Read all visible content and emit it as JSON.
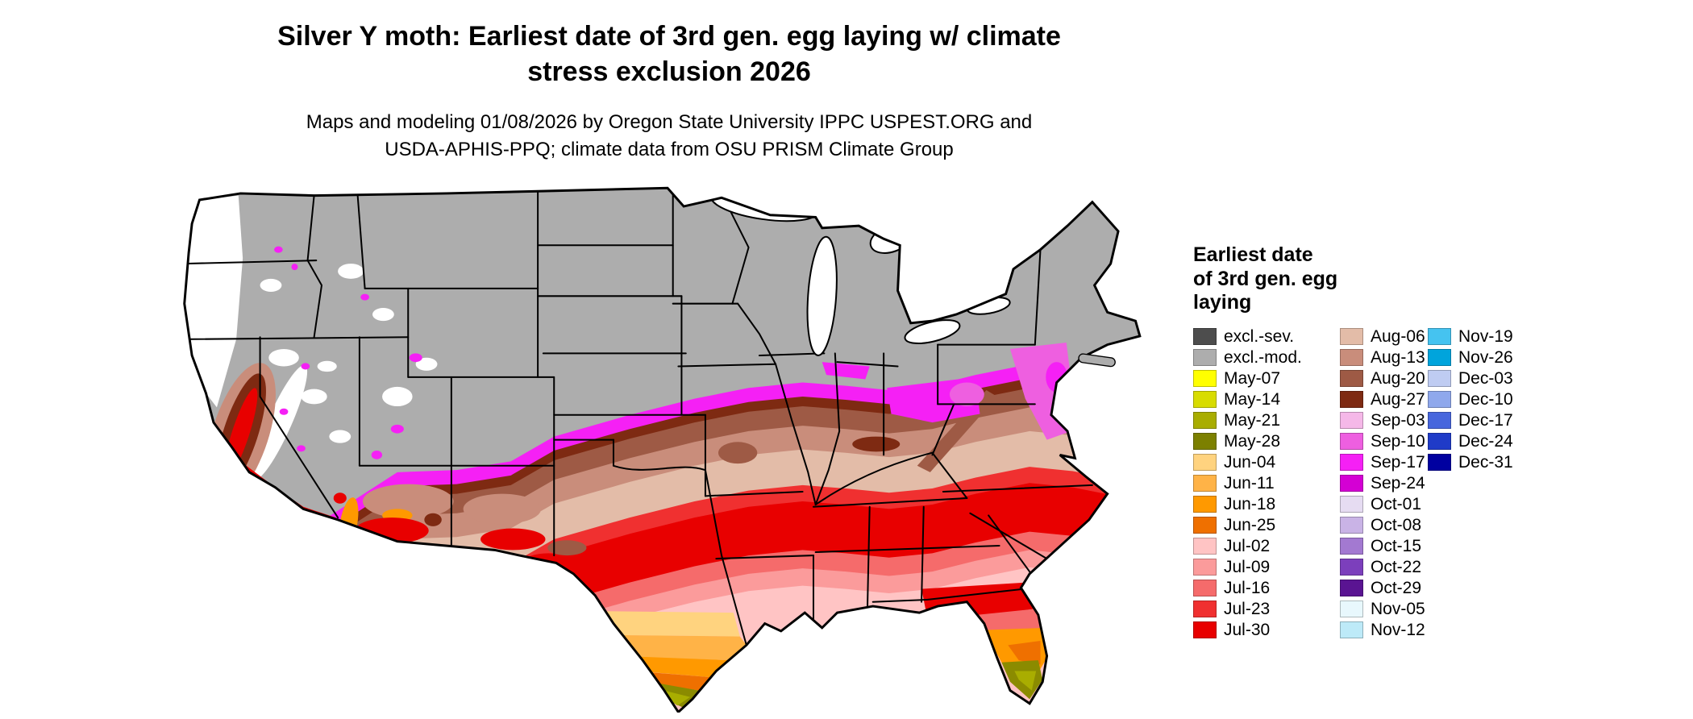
{
  "header": {
    "title_line1": "Silver Y moth: Earliest date of 3rd gen. egg laying w/ climate",
    "title_line2": "stress exclusion 2026",
    "subtitle_line1": "Maps and modeling 01/08/2026 by Oregon State University IPPC USPEST.ORG and",
    "subtitle_line2": "USDA-APHIS-PPQ; climate data from OSU PRISM Climate Group"
  },
  "map": {
    "description": "Continental US choropleth map of earliest date of 3rd generation egg laying for Silver Y moth with climate stress exclusion",
    "background_color": "#FFFFFF",
    "excluded_moderate_fill": "#ADADAD",
    "state_border_color": "#000000"
  },
  "legend": {
    "title_lines": [
      "Earliest date",
      "of 3rd gen. egg",
      "laying"
    ],
    "columns": [
      [
        {
          "label": "excl.-sev.",
          "color": "#4D4D4D"
        },
        {
          "label": "excl.-mod.",
          "color": "#ADADAD"
        },
        {
          "label": "May-07",
          "color": "#FFFF00"
        },
        {
          "label": "May-14",
          "color": "#D8DC00"
        },
        {
          "label": "May-21",
          "color": "#A9AD00"
        },
        {
          "label": "May-28",
          "color": "#7C8000"
        },
        {
          "label": "Jun-04",
          "color": "#FFD37F"
        },
        {
          "label": "Jun-11",
          "color": "#FFB347"
        },
        {
          "label": "Jun-18",
          "color": "#FF9900"
        },
        {
          "label": "Jun-25",
          "color": "#EF7000"
        },
        {
          "label": "Jul-02",
          "color": "#FFC4C4"
        },
        {
          "label": "Jul-09",
          "color": "#FB9B9B"
        },
        {
          "label": "Jul-16",
          "color": "#F56B6B"
        },
        {
          "label": "Jul-23",
          "color": "#F03030"
        },
        {
          "label": "Jul-30",
          "color": "#E80000"
        }
      ],
      [
        {
          "label": "Aug-06",
          "color": "#E3BCA8"
        },
        {
          "label": "Aug-13",
          "color": "#C98D7B"
        },
        {
          "label": "Aug-20",
          "color": "#9E5A45"
        },
        {
          "label": "Aug-27",
          "color": "#7E2A12"
        },
        {
          "label": "Sep-03",
          "color": "#F5B8E8"
        },
        {
          "label": "Sep-10",
          "color": "#EE5FE0"
        },
        {
          "label": "Sep-17",
          "color": "#F520F5"
        },
        {
          "label": "Sep-24",
          "color": "#D400D4"
        },
        {
          "label": "Oct-01",
          "color": "#E6DCF2"
        },
        {
          "label": "Oct-08",
          "color": "#C9B3E6"
        },
        {
          "label": "Oct-15",
          "color": "#A379D1"
        },
        {
          "label": "Oct-22",
          "color": "#7C3FBC"
        },
        {
          "label": "Oct-29",
          "color": "#5A1492"
        },
        {
          "label": "Nov-05",
          "color": "#E8F8FD"
        },
        {
          "label": "Nov-12",
          "color": "#BDEAF8"
        }
      ],
      [
        {
          "label": "Nov-19",
          "color": "#45C3F0"
        },
        {
          "label": "Nov-26",
          "color": "#00A4DC"
        },
        {
          "label": "Dec-03",
          "color": "#BFCCF2"
        },
        {
          "label": "Dec-10",
          "color": "#8FA8EC"
        },
        {
          "label": "Dec-17",
          "color": "#4766DD"
        },
        {
          "label": "Dec-24",
          "color": "#1F3BC8"
        },
        {
          "label": "Dec-31",
          "color": "#0000A0"
        }
      ]
    ]
  }
}
